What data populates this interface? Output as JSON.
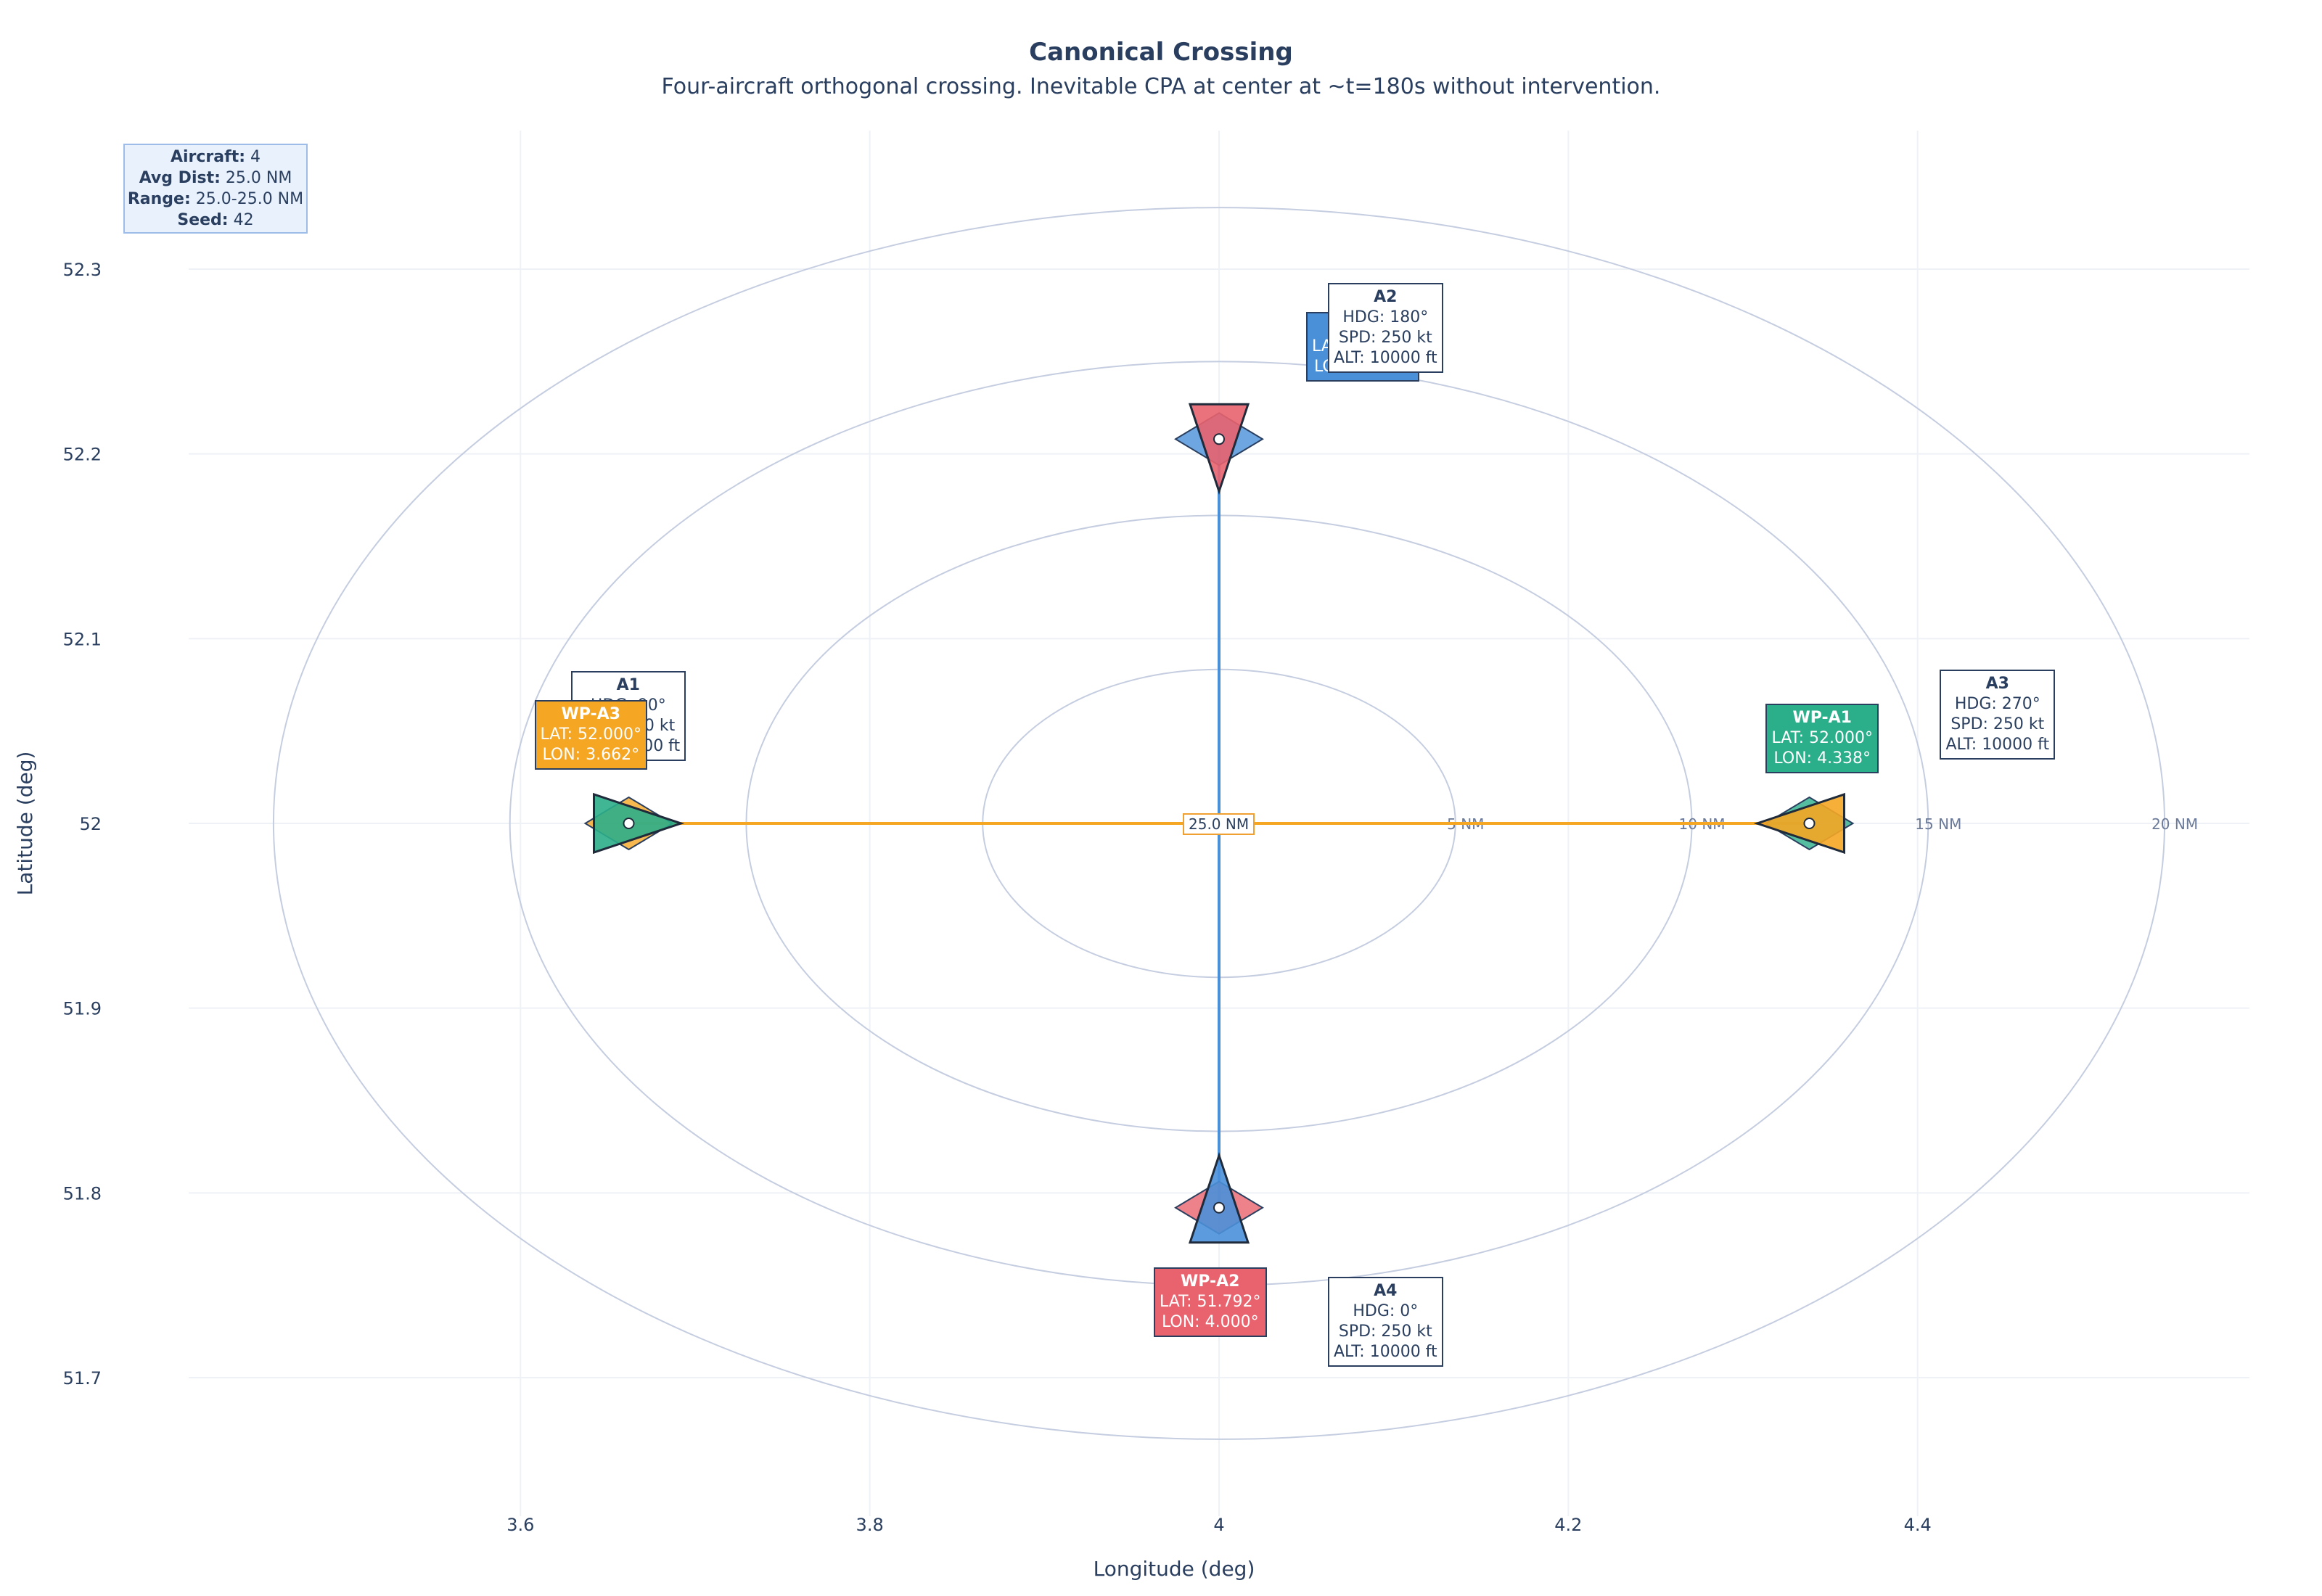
{
  "chart_title": "Canonical Crossing",
  "chart_subtitle": "Four-aircraft orthogonal crossing. Inevitable CPA at center at ~t=180s without intervention.",
  "info": {
    "aircraft_label": "Aircraft:",
    "aircraft_value": "4",
    "avg_label": "Avg Dist:",
    "avg_value": "25.0 NM",
    "range_label": "Range:",
    "range_value": "25.0-25.0 NM",
    "seed_label": "Seed:",
    "seed_value": "42"
  },
  "center_label": "25.0 NM",
  "colors": {
    "blue": "#4a90d9",
    "red": "#e8636e",
    "teal": "#2bae8a",
    "orange": "#f5a623",
    "ring": "#c5cde0",
    "grid": "#eef1f6"
  },
  "chart_data": {
    "type": "scatter",
    "title": "Canonical Crossing",
    "subtitle": "Four-aircraft orthogonal crossing. Inevitable CPA at center at ~t=180s without intervention.",
    "xlabel": "Longitude (deg)",
    "ylabel": "Latitude (deg)",
    "xlim": [
      3.41,
      4.59
    ],
    "ylim": [
      51.625,
      52.375
    ],
    "xticks": [
      3.6,
      3.8,
      4,
      4.2,
      4.4
    ],
    "xtick_labels": [
      "3.6",
      "3.8",
      "4",
      "4.2",
      "4.4"
    ],
    "yticks": [
      51.7,
      51.8,
      51.9,
      52,
      52.1,
      52.2,
      52.3
    ],
    "ytick_labels": [
      "51.7",
      "51.8",
      "51.9",
      "52",
      "52.1",
      "52.2",
      "52.3"
    ],
    "grid": true,
    "center": {
      "lon": 4.0,
      "lat": 52.0
    },
    "range_rings": [
      {
        "radius_nm": 5,
        "label": "5 NM"
      },
      {
        "radius_nm": 10,
        "label": "10 NM"
      },
      {
        "radius_nm": 15,
        "label": "15 NM"
      },
      {
        "radius_nm": 20,
        "label": "20 NM"
      }
    ],
    "aircraft": [
      {
        "id": "A1",
        "lat": 52.0,
        "lon": 3.662,
        "hdg": 90,
        "color": "#2bae8a",
        "line1": "HDG: 90°",
        "line2": "SPD: 250 kt",
        "line3": "ALT: 10000 ft"
      },
      {
        "id": "A2",
        "lat": 52.208,
        "lon": 4.0,
        "hdg": 180,
        "color": "#e8636e",
        "line1": "HDG: 180°",
        "line2": "SPD: 250 kt",
        "line3": "ALT: 10000 ft"
      },
      {
        "id": "A3",
        "lat": 52.0,
        "lon": 4.338,
        "hdg": 270,
        "color": "#f5a623",
        "line1": "HDG: 270°",
        "line2": "SPD: 250 kt",
        "line3": "ALT: 10000 ft"
      },
      {
        "id": "A4",
        "lat": 51.792,
        "lon": 4.0,
        "hdg": 0,
        "color": "#4a90d9",
        "line1": "HDG: 0°",
        "line2": "SPD: 250 kt",
        "line3": "ALT: 10000 ft"
      }
    ],
    "waypoints": [
      {
        "id": "WP-A1",
        "target": "A1",
        "lat": 52.0,
        "lon": 4.338,
        "color": "#2bae8a",
        "lat_text": "LAT: 52.000°",
        "lon_text": "LON: 4.338°"
      },
      {
        "id": "WP-A2",
        "target": "A2",
        "lat": 51.792,
        "lon": 4.0,
        "color": "#e8636e",
        "lat_text": "LAT: 51.792°",
        "lon_text": "LON: 4.000°"
      },
      {
        "id": "WP-A3",
        "target": "A3",
        "lat": 52.0,
        "lon": 3.662,
        "color": "#f5a623",
        "lat_text": "LAT: 52.000°",
        "lon_text": "LON: 3.662°"
      },
      {
        "id": "WP-A4",
        "target": "A4",
        "lat": 52.208,
        "lon": 4.0,
        "color": "#4a90d9",
        "lat_text": "LAT: 52.208°",
        "lon_text": "LON: 4.000°"
      }
    ]
  }
}
